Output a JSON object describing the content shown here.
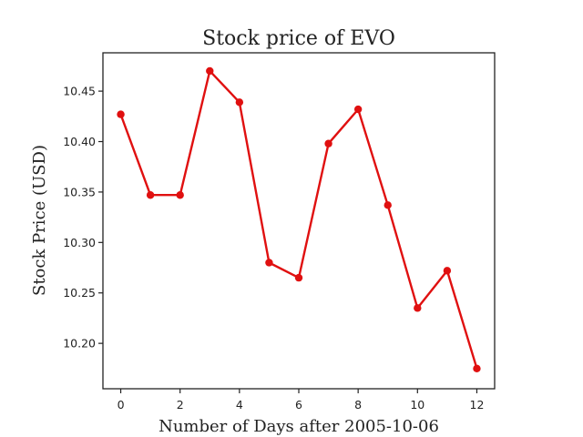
{
  "chart_data": {
    "type": "line",
    "title": "Stock price of EVO",
    "xlabel": "Number of Days after 2005-10-06",
    "ylabel": "Stock Price (USD)",
    "xlim": [
      -0.6,
      12.6
    ],
    "ylim": [
      10.155,
      10.488
    ],
    "xticks": [
      0,
      2,
      4,
      6,
      8,
      10,
      12
    ],
    "yticks": [
      10.2,
      10.25,
      10.3,
      10.35,
      10.4,
      10.45
    ],
    "grid": false,
    "series": [
      {
        "color": "#e01010",
        "marker": "circle",
        "x": [
          0,
          1,
          2,
          3,
          4,
          5,
          6,
          7,
          8,
          9,
          10,
          11,
          12
        ],
        "y": [
          10.427,
          10.347,
          10.347,
          10.47,
          10.439,
          10.28,
          10.265,
          10.398,
          10.432,
          10.337,
          10.235,
          10.272,
          10.175
        ]
      }
    ]
  }
}
